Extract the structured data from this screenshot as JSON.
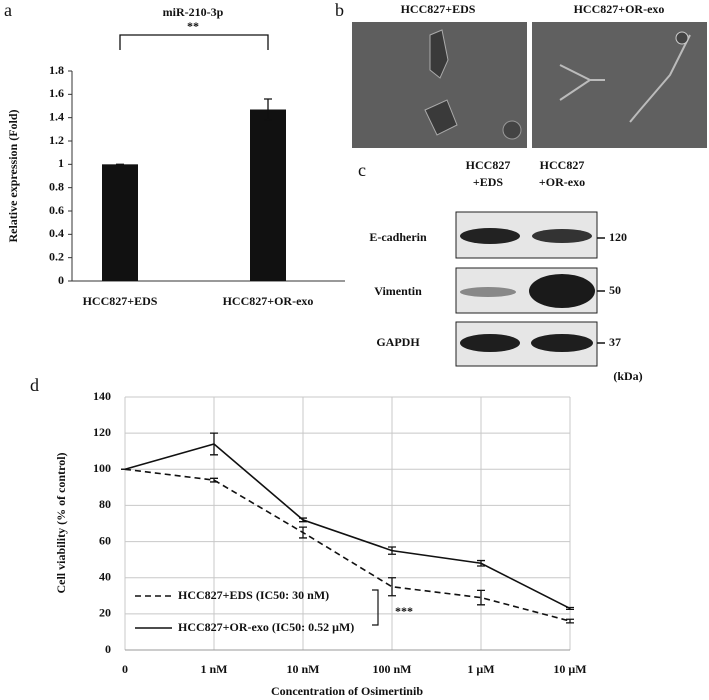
{
  "chart_data": [
    {
      "type": "bar",
      "panel_label": "a",
      "title": "miR-210-3p",
      "significance": "**",
      "y_label": "Relative expression (Fold)",
      "categories": [
        "HCC827+EDS",
        "HCC827+OR-exo"
      ],
      "values": [
        1,
        1.47
      ],
      "errors": [
        0,
        0.09
      ],
      "color": "#111111",
      "ylim": [
        0,
        1.8
      ],
      "yticks": [
        0,
        0.2,
        0.4,
        0.6,
        0.8,
        1,
        1.2,
        1.4,
        1.6,
        1.8
      ],
      "grid": false
    },
    {
      "type": "line",
      "panel_label": "d",
      "x_label": "Concentration of Osimertinib",
      "y_label": "Cell viability (% of control)",
      "categories": [
        "0",
        "1 nM",
        "10 nM",
        "100 nM",
        "1 μM",
        "10 μM"
      ],
      "series": [
        {
          "name": "HCC827+EDS (IC50: 30 nM)",
          "color": "#111111",
          "linestyle": "dashed",
          "values": [
            100,
            94,
            65,
            35,
            29,
            16
          ],
          "errors": [
            0,
            1,
            3,
            5,
            4,
            1
          ]
        },
        {
          "name": "HCC827+OR-exo (IC50: 0.52 μM)",
          "color": "#111111",
          "linestyle": "solid",
          "values": [
            100,
            114,
            72,
            55,
            48,
            23
          ],
          "errors": [
            0,
            6,
            1,
            2,
            1.5,
            0.5
          ]
        }
      ],
      "annotation": "***",
      "legend": "lower left",
      "ylim": [
        0,
        140
      ],
      "yticks": [
        0,
        20,
        40,
        60,
        80,
        100,
        120,
        140
      ],
      "grid": true
    }
  ],
  "panel_b": {
    "label": "b",
    "images": [
      "HCC827+EDS",
      "HCC827+OR-exo"
    ]
  },
  "panel_c": {
    "label": "c",
    "columns": [
      [
        "HCC827",
        "+EDS"
      ],
      [
        "HCC827",
        "+OR-exo"
      ]
    ],
    "rows": [
      {
        "protein": "E-cadherin",
        "kda": 120
      },
      {
        "protein": "Vimentin",
        "kda": 50
      },
      {
        "protein": "GAPDH",
        "kda": 37
      }
    ],
    "unit": "(kDa)"
  }
}
